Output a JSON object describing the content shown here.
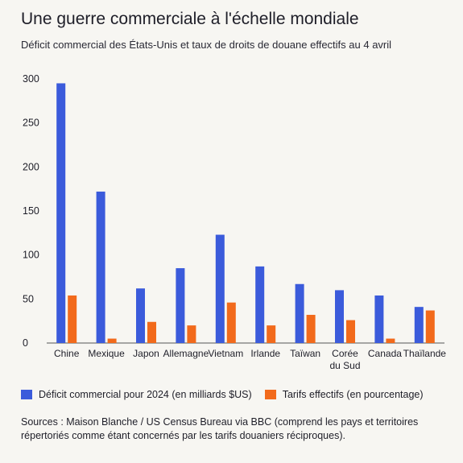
{
  "header": {
    "title": "Une guerre commerciale à l'échelle mondiale",
    "subtitle": "Déficit commercial des États-Unis et taux de droits de douane effectifs au 4 avril"
  },
  "chart_data": {
    "type": "bar",
    "categories": [
      "Chine",
      "Mexique",
      "Japon",
      "Allemagne",
      "Vietnam",
      "Irlande",
      "Taïwan",
      "Corée du Sud",
      "Canada",
      "Thaïlande"
    ],
    "category_lines": [
      [
        "Chine"
      ],
      [
        "Mexique"
      ],
      [
        "Japon"
      ],
      [
        "Allemagne"
      ],
      [
        "Vietnam"
      ],
      [
        "Irlande"
      ],
      [
        "Taïwan"
      ],
      [
        "Corée",
        "du Sud"
      ],
      [
        "Canada"
      ],
      [
        "Thaïlande"
      ]
    ],
    "series": [
      {
        "name": "Déficit commercial pour 2024 (en milliards $US)",
        "color": "#3b5bdb",
        "values": [
          295,
          172,
          62,
          85,
          123,
          87,
          67,
          60,
          54,
          41
        ]
      },
      {
        "name": "Tarifs effectifs (en pourcentage)",
        "color": "#f26a1b",
        "values": [
          54,
          5,
          24,
          20,
          46,
          20,
          32,
          26,
          5,
          37
        ]
      }
    ],
    "yticks": [
      0,
      50,
      100,
      150,
      200,
      250,
      300
    ],
    "ylim": [
      0,
      300
    ],
    "grid": false,
    "legend_position": "bottom-left"
  },
  "footer": {
    "source": "Sources : Maison Blanche / US Census Bureau via BBC (comprend les pays et territoires répertoriés comme étant concernés par les tarifs douaniers réciproques)."
  }
}
